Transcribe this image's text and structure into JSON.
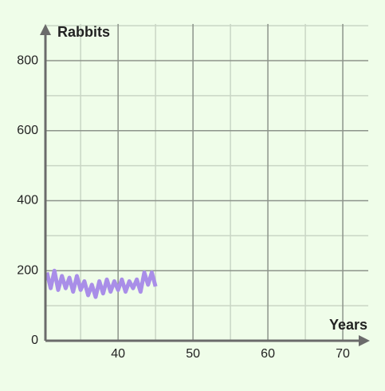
{
  "chart_data": {
    "type": "line",
    "y_label": "Rabbits",
    "x_label": "Years",
    "x": [
      30.5,
      31,
      31.5,
      32,
      32.5,
      33,
      33.5,
      34,
      34.5,
      35,
      35.5,
      36,
      36.5,
      37,
      37.5,
      38,
      38.5,
      39,
      39.5,
      40,
      40.5,
      41,
      41.5,
      42,
      42.5,
      43,
      43.5,
      44,
      44.5,
      45
    ],
    "series": [
      {
        "name": "Rabbits",
        "color": "#a98ee8",
        "values": [
          195,
          150,
          200,
          145,
          185,
          150,
          180,
          140,
          185,
          145,
          170,
          130,
          160,
          125,
          170,
          135,
          175,
          140,
          170,
          145,
          175,
          140,
          170,
          150,
          175,
          140,
          195,
          160,
          195,
          155
        ]
      }
    ],
    "xlim": [
      30.3,
      73.4
    ],
    "ylim": [
      0,
      905
    ],
    "xticks": [
      40,
      50,
      60,
      70
    ],
    "yticks": [
      0,
      200,
      400,
      600,
      800
    ],
    "grid": true
  }
}
